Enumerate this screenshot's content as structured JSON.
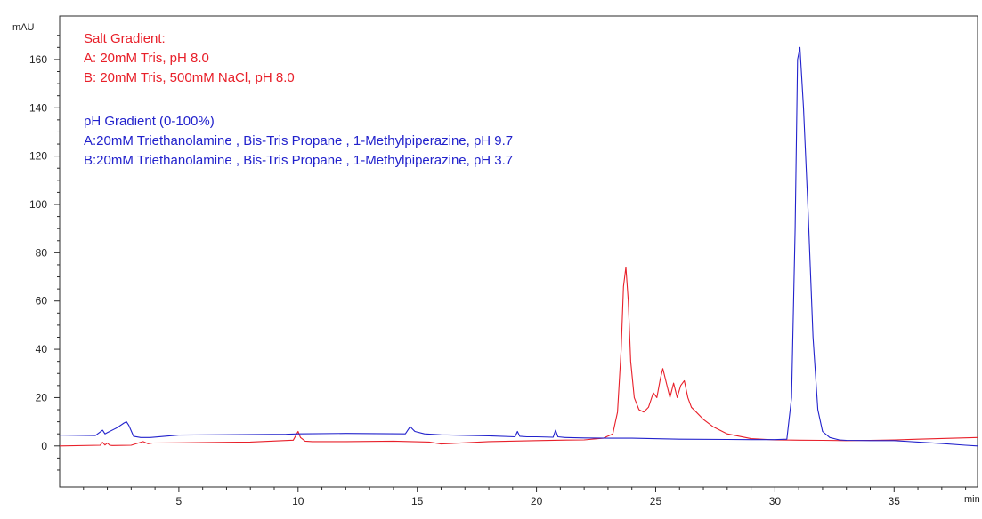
{
  "chart_data": {
    "type": "line",
    "ylabel": "mAU",
    "xlabel": "min",
    "xlim": [
      0,
      38.5
    ],
    "ylim": [
      -17,
      178
    ],
    "x_ticks": [
      5,
      10,
      15,
      20,
      25,
      30,
      35
    ],
    "y_ticks": [
      0,
      20,
      40,
      60,
      80,
      100,
      120,
      140,
      160
    ],
    "grid": false,
    "annotations": {
      "salt": {
        "color": "#e8202a",
        "lines": [
          "Salt Gradient:",
          "A: 20mM Tris, pH 8.0",
          "B: 20mM Tris, 500mM NaCl, pH 8.0"
        ]
      },
      "ph": {
        "color": "#2222cc",
        "lines": [
          "pH Gradient (0-100%)",
          "A:20mM Triethanolamine , Bis-Tris Propane , 1-Methylpiperazine, pH 9.7",
          "B:20mM Triethanolamine , Bis-Tris Propane , 1-Methylpiperazine, pH 3.7"
        ]
      }
    },
    "series": [
      {
        "color": "#e8202a",
        "x": [
          0,
          1.7,
          1.8,
          1.9,
          2.0,
          2.1,
          2.2,
          3.0,
          3.5,
          3.7,
          3.9,
          5,
          8,
          9.8,
          10.0,
          10.1,
          10.3,
          10.6,
          12,
          14,
          15.5,
          16,
          18,
          20,
          21,
          22,
          22.8,
          23.2,
          23.4,
          23.55,
          23.65,
          23.75,
          23.85,
          23.95,
          24.1,
          24.3,
          24.5,
          24.7,
          24.9,
          25.05,
          25.2,
          25.3,
          25.45,
          25.6,
          25.75,
          25.9,
          26.05,
          26.2,
          26.35,
          26.5,
          26.7,
          27.0,
          27.4,
          28,
          29,
          30,
          31,
          32,
          33,
          34,
          35,
          36,
          37,
          38.5
        ],
        "y": [
          0,
          0.3,
          1.5,
          0.4,
          1.2,
          0.3,
          0.2,
          0.3,
          1.8,
          0.9,
          1.2,
          1.3,
          1.6,
          2.4,
          6,
          3.5,
          2,
          1.8,
          1.8,
          2.0,
          1.6,
          0.8,
          1.8,
          2.2,
          2.4,
          2.5,
          3.2,
          5,
          14,
          40,
          66,
          74,
          60,
          35,
          20,
          15,
          14,
          16,
          22,
          20,
          28,
          32,
          26,
          20,
          26,
          20,
          25,
          27,
          20,
          16,
          14,
          11,
          8,
          5,
          3,
          2.5,
          2.4,
          2.3,
          2.2,
          2.3,
          2.5,
          2.8,
          3.1,
          3.5
        ]
      },
      {
        "color": "#2222cc",
        "x": [
          0,
          1.5,
          1.8,
          1.9,
          2.0,
          2.4,
          2.7,
          2.8,
          2.9,
          3.1,
          3.4,
          3.8,
          5,
          9.5,
          10,
          12,
          14.5,
          14.7,
          14.9,
          15.3,
          16,
          18,
          19.1,
          19.2,
          19.3,
          19.6,
          20,
          20.7,
          20.8,
          20.9,
          21.2,
          22,
          23,
          24,
          26,
          28,
          29,
          30,
          30.5,
          30.7,
          30.85,
          30.95,
          31.05,
          31.2,
          31.4,
          31.6,
          31.8,
          32,
          32.3,
          32.7,
          33,
          34,
          35,
          36,
          37,
          38,
          38.5
        ],
        "y": [
          4.5,
          4.3,
          6.5,
          5,
          5.5,
          7.5,
          9.5,
          10,
          8.5,
          4,
          3.5,
          3.5,
          4.5,
          4.8,
          5,
          5.2,
          5,
          8,
          6,
          5,
          4.6,
          4.2,
          3.8,
          6,
          4,
          3.8,
          3.8,
          3.6,
          6.5,
          3.8,
          3.5,
          3.3,
          3.2,
          3.2,
          2.8,
          2.7,
          2.6,
          2.6,
          2.8,
          20,
          90,
          160,
          165,
          140,
          95,
          45,
          15,
          6,
          3.5,
          2.5,
          2.3,
          2.2,
          2.2,
          1.6,
          1.0,
          0.3,
          0
        ]
      }
    ]
  }
}
